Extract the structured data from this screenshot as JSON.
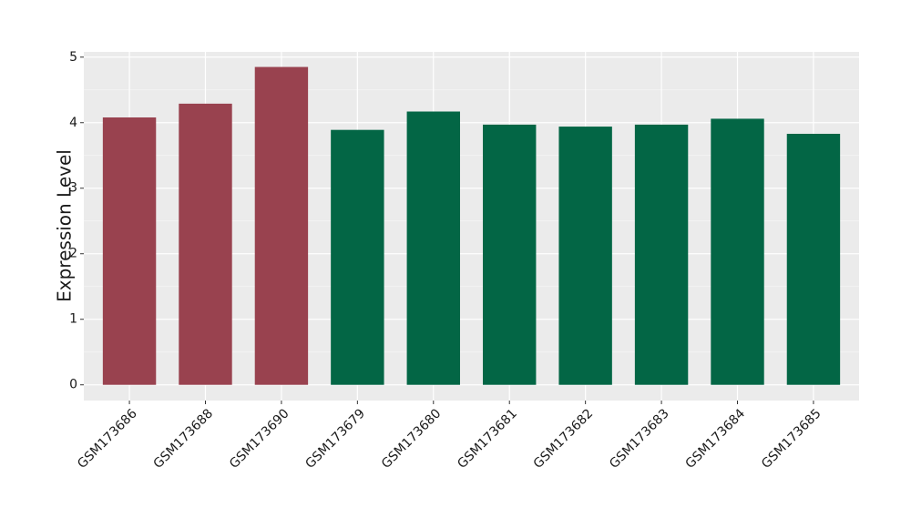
{
  "chart_data": {
    "type": "bar",
    "y_label": "Expression Level",
    "categories": [
      "GSM173686",
      "GSM173688",
      "GSM173690",
      "GSM173679",
      "GSM173680",
      "GSM173681",
      "GSM173682",
      "GSM173683",
      "GSM173684",
      "GSM173685"
    ],
    "values": [
      4.08,
      4.29,
      4.85,
      3.89,
      4.17,
      3.97,
      3.94,
      3.97,
      4.06,
      3.83
    ],
    "colors": [
      "#99424f",
      "#99424f",
      "#99424f",
      "#036645",
      "#036645",
      "#036645",
      "#036645",
      "#036645",
      "#036645",
      "#036645"
    ],
    "ylim": [
      -0.24,
      5.08
    ],
    "yticks": [
      0,
      1,
      2,
      3,
      4,
      5
    ],
    "grid": true
  }
}
